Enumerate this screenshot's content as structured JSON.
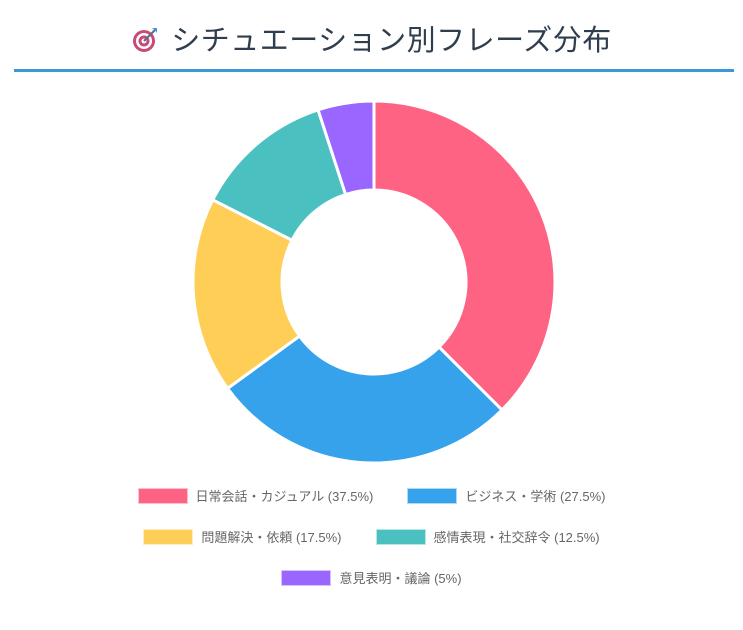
{
  "header": {
    "icon": "target-dart-icon",
    "title": "シチュエーション別フレーズ分布",
    "rule_color": "#3a98d8"
  },
  "chart_data": {
    "type": "pie",
    "style": "doughnut",
    "legend_position": "bottom",
    "categories": [
      "日常会話・カジュアル (37.5%)",
      "ビジネス・学術 (27.5%)",
      "問題解決・依頼 (17.5%)",
      "感情表現・社交辞令 (12.5%)",
      "意見表明・議論 (5%)"
    ],
    "values": [
      37.5,
      27.5,
      17.5,
      12.5,
      5
    ],
    "colors": [
      "#ff6384",
      "#36a2eb",
      "#ffce56",
      "#4bc0c0",
      "#9966ff"
    ]
  }
}
